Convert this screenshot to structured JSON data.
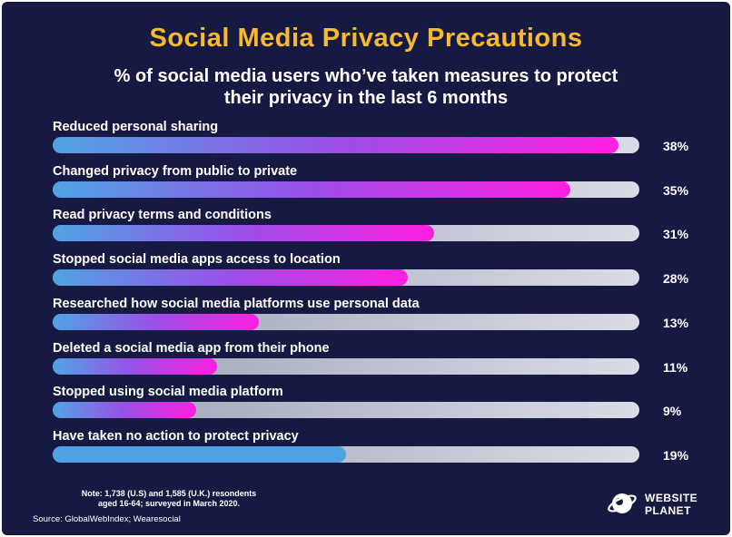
{
  "chart_data": {
    "type": "bar",
    "orientation": "horizontal",
    "title": "Social Media Privacy Precautions",
    "subtitle_lines": [
      "% of social media users who’ve taken measures to protect",
      "their privacy in the last 6 months"
    ],
    "categories": [
      "Reduced personal sharing",
      "Changed privacy from public to private",
      "Read privacy terms and conditions",
      "Stopped social media apps access to location",
      "Researched how social media platforms use personal data",
      "Deleted a social media app from their phone",
      "Stopped using social media platform",
      "Have taken no action to protect privacy"
    ],
    "values": [
      38,
      35,
      31,
      28,
      13,
      11,
      9,
      19
    ],
    "value_labels": [
      "38%",
      "35%",
      "31%",
      "28%",
      "13%",
      "11%",
      "9%",
      "19%"
    ],
    "fill_fractions": [
      0.965,
      0.882,
      0.65,
      0.605,
      0.352,
      0.28,
      0.245,
      0.5
    ],
    "xlim": [
      0,
      100
    ],
    "grid": false,
    "legend": "none"
  },
  "note_lines": [
    "Note: 1,738 (U.S) and 1,585 (U.K.) resondents",
    "aged 16-64; surveyed in March 2020."
  ],
  "source": "Source: GlobalWebIndex; Wearesocial",
  "logo": {
    "line1": "WEBSITE",
    "line2": "PLANET",
    "icon": "planet-icon"
  },
  "colors": {
    "background": "#161a42",
    "title": "#f6b92f",
    "fill_start": "#4fa3e3",
    "fill_mid": "#9b4fe8",
    "fill_end": "#ff1fe0",
    "no_action_fill": "#4fa3e3"
  }
}
